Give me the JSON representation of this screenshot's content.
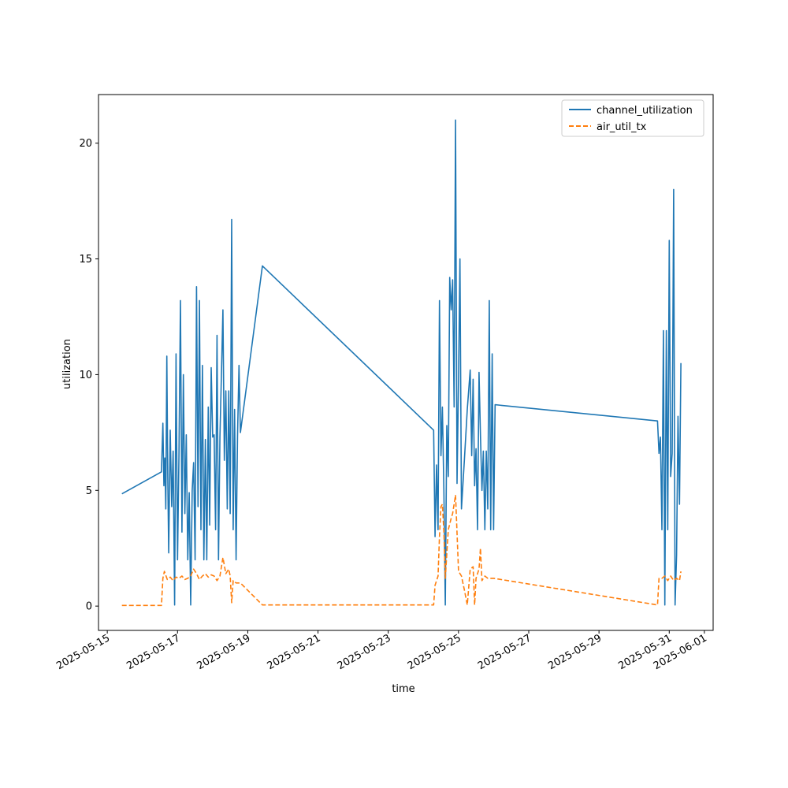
{
  "chart_data": {
    "type": "line",
    "title": "",
    "xlabel": "time",
    "ylabel": "utilization",
    "x_ticks": [
      "2025-05-15",
      "2025-05-17",
      "2025-05-19",
      "2025-05-21",
      "2025-05-23",
      "2025-05-25",
      "2025-05-27",
      "2025-05-29",
      "2025-05-31",
      "2025-06-01"
    ],
    "y_ticks": [
      0,
      5,
      10,
      15,
      20
    ],
    "xlim": [
      "2025-05-14 18:00",
      "2025-06-01 06:00"
    ],
    "ylim": [
      -1.05,
      22.1
    ],
    "legend": "top-right",
    "grid": false,
    "series": [
      {
        "name": "channel_utilization",
        "color": "#1f77b4",
        "style": "solid",
        "points": [
          [
            "2025-05-15 10:00",
            4.85
          ],
          [
            "2025-05-16 13:00",
            5.8
          ],
          [
            "2025-05-16 14:00",
            7.9
          ],
          [
            "2025-05-16 14:40",
            5.2
          ],
          [
            "2025-05-16 15:20",
            6.4
          ],
          [
            "2025-05-16 16:00",
            4.2
          ],
          [
            "2025-05-16 16:40",
            10.8
          ],
          [
            "2025-05-16 17:20",
            5.6
          ],
          [
            "2025-05-16 18:00",
            2.3
          ],
          [
            "2025-05-16 19:00",
            7.6
          ],
          [
            "2025-05-16 20:00",
            4.3
          ],
          [
            "2025-05-16 21:00",
            6.7
          ],
          [
            "2025-05-16 22:00",
            0.05
          ],
          [
            "2025-05-16 23:00",
            10.9
          ],
          [
            "2025-05-17 00:00",
            2.0
          ],
          [
            "2025-05-17 01:00",
            6.5
          ],
          [
            "2025-05-17 02:00",
            13.2
          ],
          [
            "2025-05-17 03:00",
            3.2
          ],
          [
            "2025-05-17 04:00",
            10.0
          ],
          [
            "2025-05-17 05:00",
            4.0
          ],
          [
            "2025-05-17 06:00",
            7.4
          ],
          [
            "2025-05-17 07:00",
            2.0
          ],
          [
            "2025-05-17 08:00",
            4.9
          ],
          [
            "2025-05-17 09:00",
            0.05
          ],
          [
            "2025-05-17 10:00",
            5.0
          ],
          [
            "2025-05-17 11:00",
            6.2
          ],
          [
            "2025-05-17 12:00",
            2.0
          ],
          [
            "2025-05-17 13:00",
            13.8
          ],
          [
            "2025-05-17 14:00",
            4.3
          ],
          [
            "2025-05-17 15:00",
            13.2
          ],
          [
            "2025-05-17 16:00",
            3.3
          ],
          [
            "2025-05-17 17:00",
            10.4
          ],
          [
            "2025-05-17 18:00",
            2.0
          ],
          [
            "2025-05-17 19:00",
            7.2
          ],
          [
            "2025-05-17 20:00",
            2.0
          ],
          [
            "2025-05-17 21:00",
            8.6
          ],
          [
            "2025-05-17 22:00",
            3.5
          ],
          [
            "2025-05-17 23:00",
            10.3
          ],
          [
            "2025-05-18 00:00",
            7.3
          ],
          [
            "2025-05-18 01:00",
            7.4
          ],
          [
            "2025-05-18 02:00",
            3.3
          ],
          [
            "2025-05-18 03:00",
            11.7
          ],
          [
            "2025-05-18 04:00",
            2.0
          ],
          [
            "2025-05-18 05:00",
            7.3
          ],
          [
            "2025-05-18 06:00",
            10.0
          ],
          [
            "2025-05-18 07:00",
            12.8
          ],
          [
            "2025-05-18 08:00",
            6.3
          ],
          [
            "2025-05-18 09:00",
            9.3
          ],
          [
            "2025-05-18 10:00",
            4.2
          ],
          [
            "2025-05-18 11:00",
            9.3
          ],
          [
            "2025-05-18 12:00",
            4.0
          ],
          [
            "2025-05-18 13:00",
            16.7
          ],
          [
            "2025-05-18 14:00",
            3.3
          ],
          [
            "2025-05-18 15:00",
            8.5
          ],
          [
            "2025-05-18 16:00",
            2.0
          ],
          [
            "2025-05-18 17:00",
            7.3
          ],
          [
            "2025-05-18 18:00",
            10.4
          ],
          [
            "2025-05-18 19:00",
            7.5
          ],
          [
            "2025-05-19 10:00",
            14.7
          ],
          [
            "2025-05-24 07:00",
            7.6
          ],
          [
            "2025-05-24 08:00",
            3.0
          ],
          [
            "2025-05-24 09:00",
            6.1
          ],
          [
            "2025-05-24 10:00",
            3.3
          ],
          [
            "2025-05-24 11:00",
            13.2
          ],
          [
            "2025-05-24 12:00",
            6.5
          ],
          [
            "2025-05-24 13:00",
            8.6
          ],
          [
            "2025-05-24 14:00",
            5.0
          ],
          [
            "2025-05-24 15:00",
            0.05
          ],
          [
            "2025-05-24 16:00",
            7.8
          ],
          [
            "2025-05-24 17:00",
            5.6
          ],
          [
            "2025-05-24 18:00",
            14.2
          ],
          [
            "2025-05-24 19:00",
            12.8
          ],
          [
            "2025-05-24 20:00",
            14.1
          ],
          [
            "2025-05-24 21:00",
            8.6
          ],
          [
            "2025-05-24 22:00",
            21.0
          ],
          [
            "2025-05-24 23:00",
            5.3
          ],
          [
            "2025-05-25 00:00",
            9.8
          ],
          [
            "2025-05-25 01:00",
            15.0
          ],
          [
            "2025-05-25 02:00",
            4.2
          ],
          [
            "2025-05-25 04:00",
            6.3
          ],
          [
            "2025-05-25 06:00",
            8.5
          ],
          [
            "2025-05-25 08:00",
            10.2
          ],
          [
            "2025-05-25 09:00",
            6.5
          ],
          [
            "2025-05-25 10:00",
            9.8
          ],
          [
            "2025-05-25 11:00",
            5.2
          ],
          [
            "2025-05-25 12:00",
            6.8
          ],
          [
            "2025-05-25 13:00",
            3.3
          ],
          [
            "2025-05-25 14:00",
            10.1
          ],
          [
            "2025-05-25 15:00",
            7.4
          ],
          [
            "2025-05-25 16:00",
            5.0
          ],
          [
            "2025-05-25 17:00",
            6.7
          ],
          [
            "2025-05-25 18:00",
            3.3
          ],
          [
            "2025-05-25 19:00",
            6.7
          ],
          [
            "2025-05-25 20:00",
            4.2
          ],
          [
            "2025-05-25 21:00",
            13.2
          ],
          [
            "2025-05-25 22:00",
            3.3
          ],
          [
            "2025-05-25 23:00",
            10.9
          ],
          [
            "2025-05-26 00:00",
            3.3
          ],
          [
            "2025-05-26 01:00",
            8.7
          ],
          [
            "2025-05-30 16:00",
            8.0
          ],
          [
            "2025-05-30 17:00",
            6.6
          ],
          [
            "2025-05-30 18:00",
            7.3
          ],
          [
            "2025-05-30 19:00",
            3.3
          ],
          [
            "2025-05-30 20:00",
            11.9
          ],
          [
            "2025-05-30 21:00",
            0.05
          ],
          [
            "2025-05-30 22:00",
            11.9
          ],
          [
            "2025-05-30 23:00",
            3.3
          ],
          [
            "2025-05-31 00:00",
            15.8
          ],
          [
            "2025-05-31 01:00",
            5.6
          ],
          [
            "2025-05-31 02:00",
            6.6
          ],
          [
            "2025-05-31 03:00",
            18.0
          ],
          [
            "2025-05-31 04:00",
            0.05
          ],
          [
            "2025-05-31 05:00",
            2.2
          ],
          [
            "2025-05-31 06:00",
            8.2
          ],
          [
            "2025-05-31 07:00",
            4.4
          ],
          [
            "2025-05-31 08:00",
            10.5
          ]
        ]
      },
      {
        "name": "air_util_tx",
        "color": "#ff7f0e",
        "style": "dashed",
        "points": [
          [
            "2025-05-15 10:00",
            0.03
          ],
          [
            "2025-05-16 13:00",
            0.03
          ],
          [
            "2025-05-16 14:00",
            1.2
          ],
          [
            "2025-05-16 15:00",
            1.5
          ],
          [
            "2025-05-16 17:00",
            1.15
          ],
          [
            "2025-05-16 19:00",
            1.25
          ],
          [
            "2025-05-16 21:00",
            1.1
          ],
          [
            "2025-05-16 23:00",
            1.25
          ],
          [
            "2025-05-17 01:00",
            1.2
          ],
          [
            "2025-05-17 03:00",
            1.3
          ],
          [
            "2025-05-17 05:00",
            1.15
          ],
          [
            "2025-05-17 07:00",
            1.2
          ],
          [
            "2025-05-17 09:00",
            1.3
          ],
          [
            "2025-05-17 11:00",
            1.6
          ],
          [
            "2025-05-17 13:00",
            1.4
          ],
          [
            "2025-05-17 15:00",
            1.15
          ],
          [
            "2025-05-17 17:00",
            1.3
          ],
          [
            "2025-05-17 19:00",
            1.4
          ],
          [
            "2025-05-17 21:00",
            1.25
          ],
          [
            "2025-05-17 23:00",
            1.35
          ],
          [
            "2025-05-18 01:00",
            1.3
          ],
          [
            "2025-05-18 03:00",
            1.1
          ],
          [
            "2025-05-18 05:00",
            1.3
          ],
          [
            "2025-05-18 07:00",
            2.1
          ],
          [
            "2025-05-18 09:00",
            1.4
          ],
          [
            "2025-05-18 11:00",
            1.6
          ],
          [
            "2025-05-18 12:00",
            1.3
          ],
          [
            "2025-05-18 13:00",
            0.15
          ],
          [
            "2025-05-18 14:00",
            1.1
          ],
          [
            "2025-05-18 16:00",
            1.0
          ],
          [
            "2025-05-18 19:00",
            1.0
          ],
          [
            "2025-05-19 10:00",
            0.05
          ],
          [
            "2025-05-24 07:00",
            0.05
          ],
          [
            "2025-05-24 08:00",
            0.9
          ],
          [
            "2025-05-24 10:00",
            1.3
          ],
          [
            "2025-05-24 11:00",
            3.0
          ],
          [
            "2025-05-24 12:00",
            4.3
          ],
          [
            "2025-05-24 13:00",
            4.4
          ],
          [
            "2025-05-24 14:00",
            3.2
          ],
          [
            "2025-05-24 15:00",
            1.2
          ],
          [
            "2025-05-24 17:00",
            3.3
          ],
          [
            "2025-05-24 19:00",
            3.8
          ],
          [
            "2025-05-24 20:00",
            4.0
          ],
          [
            "2025-05-24 22:00",
            4.8
          ],
          [
            "2025-05-25 00:00",
            1.5
          ],
          [
            "2025-05-25 02:00",
            1.3
          ],
          [
            "2025-05-25 04:00",
            0.7
          ],
          [
            "2025-05-25 06:00",
            0.05
          ],
          [
            "2025-05-25 08:00",
            1.6
          ],
          [
            "2025-05-25 10:00",
            1.7
          ],
          [
            "2025-05-25 11:00",
            0.05
          ],
          [
            "2025-05-25 12:00",
            1.2
          ],
          [
            "2025-05-25 14:00",
            1.6
          ],
          [
            "2025-05-25 15:00",
            2.5
          ],
          [
            "2025-05-25 16:00",
            1.1
          ],
          [
            "2025-05-25 18:00",
            1.3
          ],
          [
            "2025-05-25 20:00",
            1.2
          ],
          [
            "2025-05-26 00:00",
            1.2
          ],
          [
            "2025-05-30 16:00",
            0.05
          ],
          [
            "2025-05-30 17:00",
            1.2
          ],
          [
            "2025-05-30 19:00",
            1.2
          ],
          [
            "2025-05-30 21:00",
            1.3
          ],
          [
            "2025-05-30 23:00",
            1.1
          ],
          [
            "2025-05-31 01:00",
            1.3
          ],
          [
            "2025-05-31 03:00",
            1.1
          ],
          [
            "2025-05-31 05:00",
            1.2
          ],
          [
            "2025-05-31 07:00",
            1.1
          ],
          [
            "2025-05-31 08:00",
            1.5
          ]
        ]
      }
    ]
  }
}
